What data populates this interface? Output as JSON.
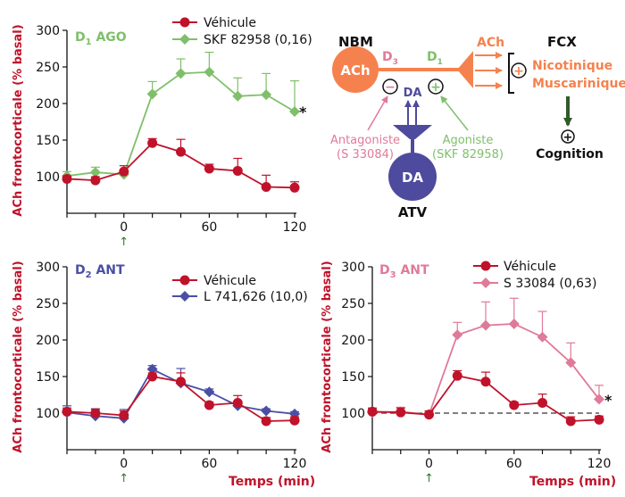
{
  "colors": {
    "red": "#c0122a",
    "green": "#7fbf6a",
    "blue": "#4a4fa6",
    "pink": "#e07a99",
    "orange": "#f5824e",
    "purple": "#4e4a9d",
    "dark_green": "#2f5a2a"
  },
  "y_axis_label": "ACh frontocorticale (% basal)",
  "x_axis_label": "Temps (min)",
  "marker_arrow": "↑",
  "chart_data": [
    {
      "type": "line",
      "title_main": "D",
      "title_sub": "1",
      "title_rest": " AGO",
      "title_color": "#7fbf6a",
      "xlim": [
        -40,
        120
      ],
      "ylim": [
        50,
        300
      ],
      "yticks": [
        100,
        150,
        200,
        250,
        300
      ],
      "xticks": [
        0,
        60,
        120
      ],
      "arrow_at": 0,
      "series": [
        {
          "name": "Véhicule",
          "color": "#c0122a",
          "marker": "circle",
          "x": [
            -40,
            -20,
            0,
            20,
            40,
            60,
            80,
            100,
            120
          ],
          "y": [
            97,
            95,
            107,
            146,
            134,
            111,
            108,
            86,
            85
          ],
          "err": [
            4,
            5,
            8,
            6,
            17,
            6,
            17,
            16,
            8
          ]
        },
        {
          "name": "SKF 82958 (0,16)",
          "color": "#7fbf6a",
          "marker": "diamond",
          "x": [
            -40,
            -20,
            0,
            20,
            40,
            60,
            80,
            100,
            120
          ],
          "y": [
            101,
            106,
            103,
            213,
            241,
            243,
            210,
            212,
            189
          ],
          "err": [
            6,
            7,
            5,
            17,
            20,
            27,
            25,
            29,
            42
          ]
        }
      ],
      "annotation": "*"
    },
    {
      "type": "line",
      "title_main": "D",
      "title_sub": "2",
      "title_rest": " ANT",
      "title_color": "#4a4fa6",
      "xlim": [
        -40,
        120
      ],
      "ylim": [
        50,
        300
      ],
      "yticks": [
        100,
        150,
        200,
        250,
        300
      ],
      "xticks": [
        0,
        60,
        120
      ],
      "arrow_at": 0,
      "series": [
        {
          "name": "Véhicule",
          "color": "#c0122a",
          "marker": "circle",
          "x": [
            -40,
            -20,
            0,
            20,
            40,
            60,
            80,
            100,
            120
          ],
          "y": [
            102,
            100,
            97,
            150,
            143,
            111,
            114,
            89,
            90
          ],
          "err": [
            5,
            5,
            6,
            5,
            12,
            4,
            10,
            5,
            5
          ]
        },
        {
          "name": "L 741,626 (10,0)",
          "color": "#4a4fa6",
          "marker": "diamond",
          "x": [
            -40,
            -20,
            0,
            20,
            40,
            60,
            80,
            100,
            120
          ],
          "y": [
            101,
            96,
            93,
            160,
            141,
            129,
            110,
            103,
            99
          ],
          "err": [
            9,
            10,
            12,
            5,
            20,
            4,
            5,
            3,
            3
          ]
        }
      ]
    },
    {
      "type": "line",
      "title_main": "D",
      "title_sub": "3",
      "title_rest": " ANT",
      "title_color": "#e07a99",
      "xlim": [
        -40,
        120
      ],
      "ylim": [
        50,
        300
      ],
      "yticks": [
        100,
        150,
        200,
        250,
        300
      ],
      "xticks": [
        0,
        60,
        120
      ],
      "arrow_at": 0,
      "baseline": 100,
      "series": [
        {
          "name": "Véhicule",
          "color": "#c0122a",
          "marker": "circle",
          "x": [
            -40,
            -20,
            0,
            20,
            40,
            60,
            80,
            100,
            120
          ],
          "y": [
            102,
            101,
            98,
            151,
            143,
            111,
            114,
            89,
            91
          ],
          "err": [
            5,
            6,
            5,
            7,
            13,
            4,
            12,
            6,
            5
          ]
        },
        {
          "name": "S 33084 (0,63)",
          "color": "#e07a99",
          "marker": "diamond",
          "x": [
            -40,
            -20,
            0,
            20,
            40,
            60,
            80,
            100,
            120
          ],
          "y": [
            101,
            102,
            98,
            207,
            220,
            222,
            204,
            169,
            119
          ],
          "err": [
            5,
            6,
            5,
            17,
            32,
            35,
            35,
            27,
            19
          ]
        }
      ],
      "annotation": "*"
    }
  ],
  "diagram": {
    "nbm_label": "NBM",
    "ach_circle": "ACh",
    "d3": {
      "main": "D",
      "sub": "3"
    },
    "d1": {
      "main": "D",
      "sub": "1"
    },
    "ach_label": "ACh",
    "fcx_label": "FCX",
    "minus_sign": "−",
    "plus_sign": "+",
    "da_label": "DA",
    "nicotinique": "Nicotinique",
    "muscarinique": "Muscarinique",
    "antagoniste": "Antagoniste",
    "antagoniste_drug": "(S 33084)",
    "agoniste": "Agoniste",
    "agoniste_drug": "(SKF 82958)",
    "da_circle": "DA",
    "atv_label": "ATV",
    "cognition": "Cognition"
  }
}
